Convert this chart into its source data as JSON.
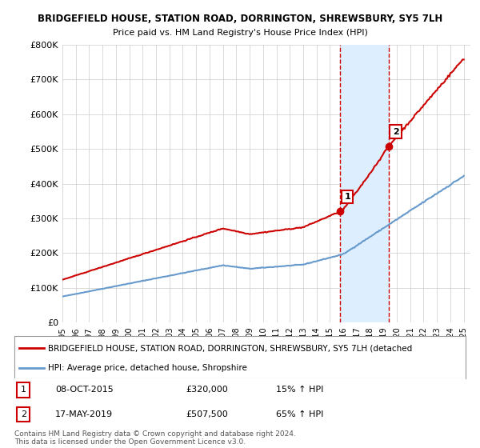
{
  "title": "BRIDGEFIELD HOUSE, STATION ROAD, DORRINGTON, SHREWSBURY, SY5 7LH",
  "subtitle": "Price paid vs. HM Land Registry's House Price Index (HPI)",
  "x_start": 1995.0,
  "x_end": 2025.5,
  "y_min": 0,
  "y_max": 800000,
  "y_ticks": [
    0,
    100000,
    200000,
    300000,
    400000,
    500000,
    600000,
    700000,
    800000
  ],
  "y_tick_labels": [
    "£0",
    "£100K",
    "£200K",
    "£300K",
    "£400K",
    "£500K",
    "£600K",
    "£700K",
    "£800K"
  ],
  "x_ticks": [
    1995,
    1996,
    1997,
    1998,
    1999,
    2000,
    2001,
    2002,
    2003,
    2004,
    2005,
    2006,
    2007,
    2008,
    2009,
    2010,
    2011,
    2012,
    2013,
    2014,
    2015,
    2016,
    2017,
    2018,
    2019,
    2020,
    2021,
    2022,
    2023,
    2024,
    2025
  ],
  "transaction1_x": 2015.77,
  "transaction1_y": 320000,
  "transaction1_label": "1",
  "transaction1_date": "08-OCT-2015",
  "transaction1_price": "£320,000",
  "transaction1_hpi": "15% ↑ HPI",
  "transaction2_x": 2019.38,
  "transaction2_y": 507500,
  "transaction2_label": "2",
  "transaction2_date": "17-MAY-2019",
  "transaction2_price": "£507,500",
  "transaction2_hpi": "65% ↑ HPI",
  "shade_x_start": 2015.77,
  "shade_x_end": 2019.38,
  "red_line_color": "#cc0000",
  "blue_line_color": "#6699cc",
  "shade_color": "#ddeeff",
  "dashed_line_color": "#cc0000",
  "legend_red_label": "BRIDGEFIELD HOUSE, STATION ROAD, DORRINGTON, SHREWSBURY, SY5 7LH (detached",
  "legend_blue_label": "HPI: Average price, detached house, Shropshire",
  "footer": "Contains HM Land Registry data © Crown copyright and database right 2024.\nThis data is licensed under the Open Government Licence v3.0.",
  "background_color": "#ffffff",
  "grid_color": "#cccccc"
}
